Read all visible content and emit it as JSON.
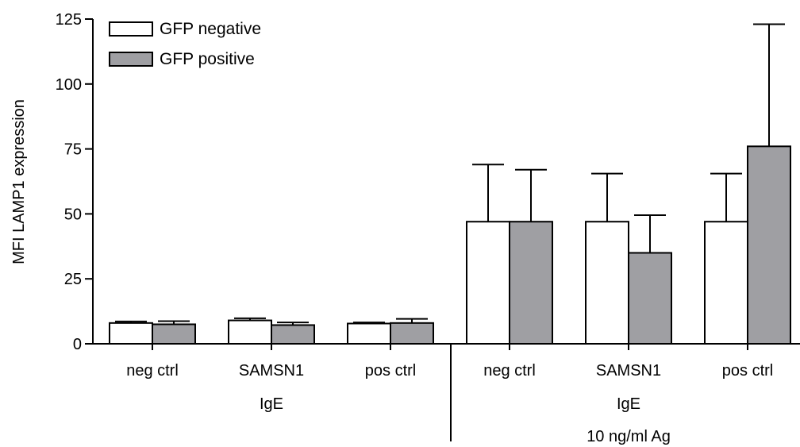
{
  "chart_data": {
    "type": "bar",
    "ylabel": "MFI LAMP1 expression",
    "ylim": [
      0,
      125
    ],
    "yticks": [
      0,
      25,
      50,
      75,
      100,
      125
    ],
    "legend_position": "top-left",
    "categories": [
      "neg ctrl",
      "SAMSN1",
      "pos ctrl",
      "neg ctrl",
      "SAMSN1",
      "pos ctrl"
    ],
    "groups": [
      {
        "labels": [
          "IgE"
        ],
        "categories": [
          0,
          1,
          2
        ]
      },
      {
        "labels": [
          "IgE",
          "10 ng/ml Ag"
        ],
        "categories": [
          3,
          4,
          5
        ]
      }
    ],
    "series": [
      {
        "name": "GFP negative",
        "color": "#ffffff",
        "values": [
          8,
          9,
          7.8,
          47,
          47,
          47
        ],
        "error": [
          0.6,
          0.8,
          0.4,
          22,
          18.5,
          18.5
        ]
      },
      {
        "name": "GFP positive",
        "color": "#9f9fa3",
        "values": [
          7.5,
          7.2,
          8,
          47,
          35,
          76
        ],
        "error": [
          1.2,
          1,
          1.6,
          20,
          14.5,
          47
        ]
      }
    ]
  }
}
